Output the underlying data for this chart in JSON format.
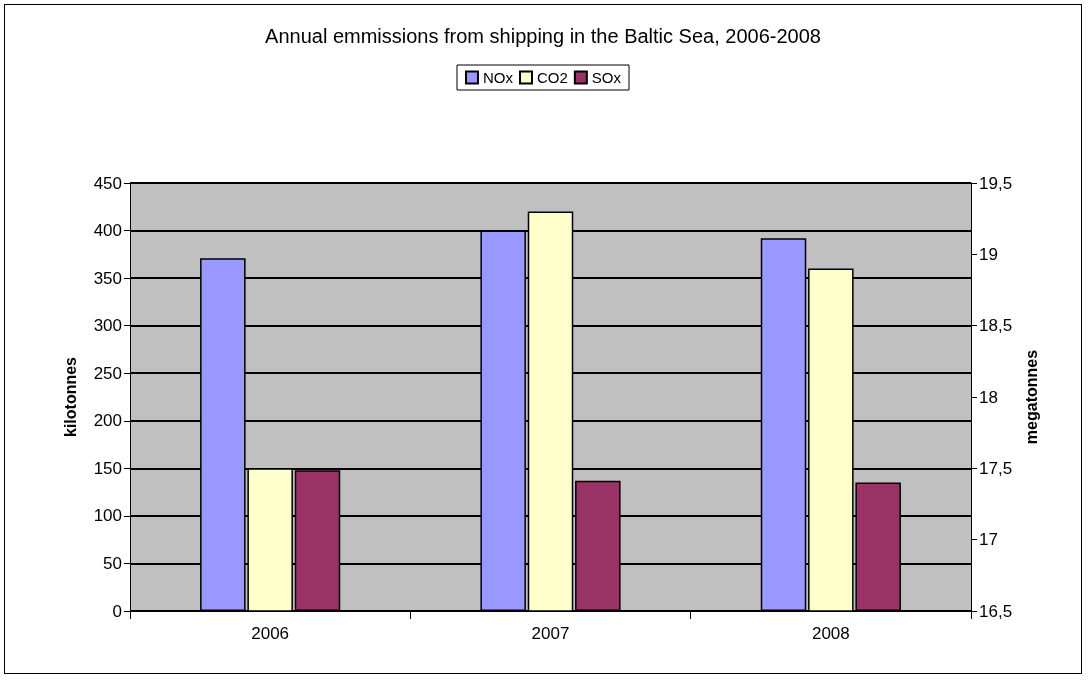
{
  "chart_data": {
    "type": "bar",
    "title": "Annual emmissions from shipping in the Baltic Sea, 2006-2008",
    "categories": [
      "2006",
      "2007",
      "2008"
    ],
    "series": [
      {
        "name": "NOx",
        "color": "#9999ff",
        "values": [
          371,
          400,
          392
        ]
      },
      {
        "name": "CO2",
        "color": "#ffffcc",
        "values": [
          17.5,
          19.3,
          18.9
        ],
        "axis": "y2"
      },
      {
        "name": "SOx",
        "color": "#993366",
        "values": [
          148,
          137,
          135
        ]
      }
    ],
    "ylabel": "kilotonnes",
    "y2label": "megatonnes",
    "ylim": [
      0,
      450
    ],
    "yticks": [
      0,
      50,
      100,
      150,
      200,
      250,
      300,
      350,
      400,
      450
    ],
    "y2lim": [
      16.5,
      19.5
    ],
    "y2ticks": [
      {
        "value": 16.5,
        "label": "16,5"
      },
      {
        "value": 17,
        "label": "17"
      },
      {
        "value": 17.5,
        "label": "17,5"
      },
      {
        "value": 18,
        "label": "18"
      },
      {
        "value": 18.5,
        "label": "18,5"
      },
      {
        "value": 19,
        "label": "19"
      },
      {
        "value": 19.5,
        "label": "19,5"
      }
    ],
    "grid": "y",
    "legend": "top"
  }
}
